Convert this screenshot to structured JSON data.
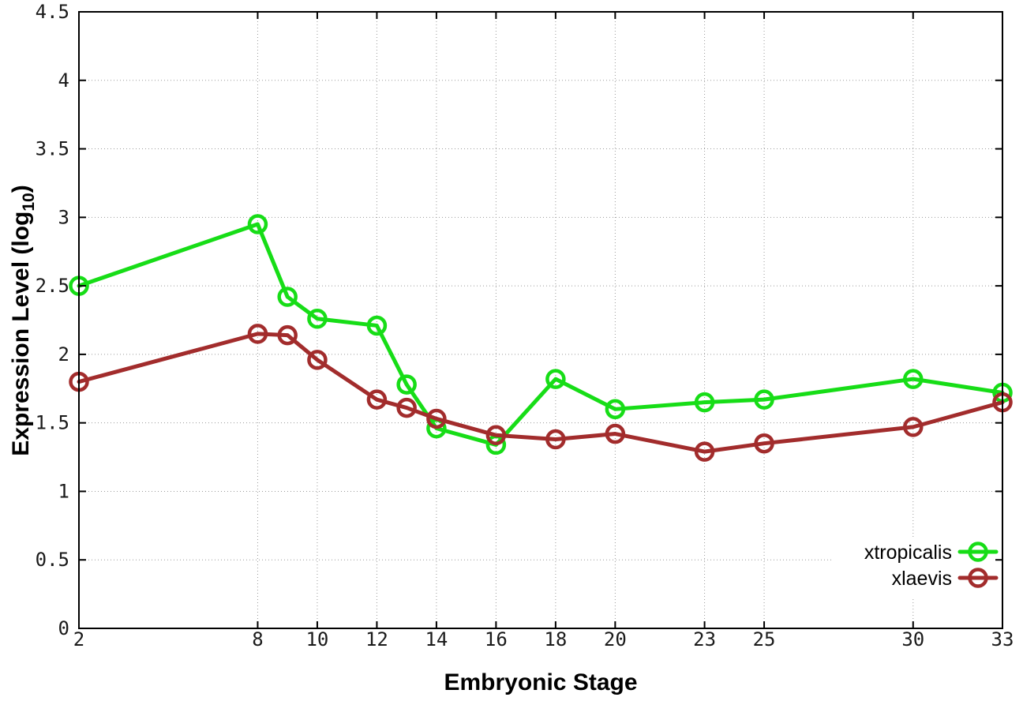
{
  "page_background": "#ffffff",
  "chart_data": {
    "type": "line",
    "title": "",
    "xlabel": "Embryonic Stage",
    "ylabel": {
      "text": "Expression Level (log",
      "sub": "10",
      "suffix": ")"
    },
    "x": [
      2,
      8,
      9,
      10,
      12,
      13,
      14,
      16,
      18,
      20,
      23,
      25,
      30,
      33
    ],
    "xticks": [
      2,
      8,
      10,
      12,
      14,
      16,
      18,
      20,
      23,
      25,
      30,
      33
    ],
    "ylim": [
      0,
      4.5
    ],
    "ytick_step": 0.5,
    "grid": true,
    "grid_color": "#9a9a9a",
    "axis_color": "#000000",
    "legend_position": "bottom-right",
    "series": [
      {
        "name": "xtropicalis",
        "color": "#17dd17",
        "marker": "open-circle",
        "values": [
          2.5,
          2.95,
          2.42,
          2.26,
          2.21,
          1.78,
          1.46,
          1.34,
          1.82,
          1.6,
          1.65,
          1.67,
          1.82,
          1.72
        ]
      },
      {
        "name": "xlaevis",
        "color": "#a22c2c",
        "marker": "open-circle",
        "values": [
          1.8,
          2.15,
          2.14,
          1.96,
          1.67,
          1.61,
          1.53,
          1.41,
          1.38,
          1.42,
          1.29,
          1.35,
          1.47,
          1.65
        ]
      }
    ]
  }
}
